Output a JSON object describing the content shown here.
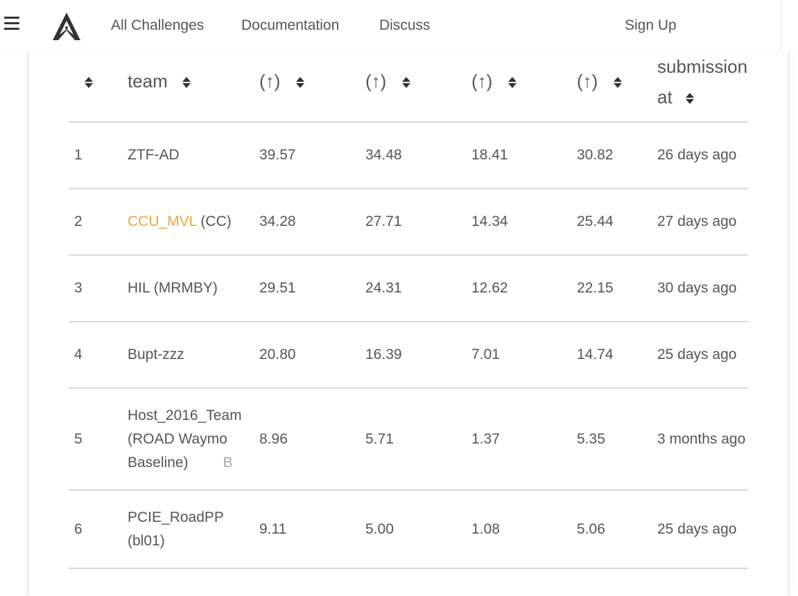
{
  "nav": {
    "items": [
      {
        "label": "All Challenges"
      },
      {
        "label": "Documentation"
      },
      {
        "label": "Discuss"
      }
    ],
    "signup_label": "Sign Up",
    "menu_icon": "hamburger-menu-icon",
    "logo_icon": "aicrowd-logo-icon"
  },
  "table": {
    "columns": [
      {
        "label": ""
      },
      {
        "label": "team"
      },
      {
        "label": "(↑)"
      },
      {
        "label": "(↑)"
      },
      {
        "label": "(↑)"
      },
      {
        "label": "(↑)"
      },
      {
        "label_line1": "submission",
        "label_line2": "at"
      }
    ],
    "rows": [
      {
        "rank": "1",
        "team": "ZTF-AD",
        "team_suffix": "",
        "tag": "",
        "m1": "39.57",
        "m2": "34.48",
        "m3": "18.41",
        "m4": "30.82",
        "submitted": "26 days ago"
      },
      {
        "rank": "2",
        "team": "CCU_MVL",
        "team_suffix": "(CC)",
        "tag": "",
        "m1": "34.28",
        "m2": "27.71",
        "m3": "14.34",
        "m4": "25.44",
        "submitted": "27 days ago"
      },
      {
        "rank": "3",
        "team": "HIL (MRMBY)",
        "team_suffix": "",
        "tag": "",
        "m1": "29.51",
        "m2": "24.31",
        "m3": "12.62",
        "m4": "22.15",
        "submitted": "30 days ago"
      },
      {
        "rank": "4",
        "team": "Bupt-zzz",
        "team_suffix": "",
        "tag": "",
        "m1": "20.80",
        "m2": "16.39",
        "m3": "7.01",
        "m4": "14.74",
        "submitted": "25 days ago"
      },
      {
        "rank": "5",
        "team_line1": "Host_2016_Team",
        "team_line2": "(ROAD Waymo",
        "team_line3": "Baseline)",
        "tag": "B",
        "m1": "8.96",
        "m2": "5.71",
        "m3": "1.37",
        "m4": "5.35",
        "submitted": "3 months ago"
      },
      {
        "rank": "6",
        "team_line1": "PCIE_RoadPP",
        "team_line2": "(bl01)",
        "tag": "",
        "m1": "9.11",
        "m2": "5.00",
        "m3": "1.08",
        "m4": "5.06",
        "submitted": "25 days ago"
      }
    ]
  },
  "colors": {
    "link": "#f2a33a",
    "text": "#555555",
    "divider": "#d8d8d8"
  }
}
